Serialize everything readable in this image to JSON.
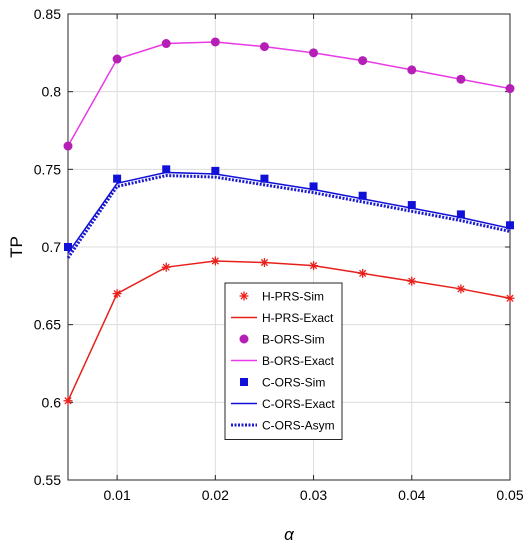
{
  "chart_data": {
    "type": "line",
    "xlabel": "α",
    "ylabel": "TP",
    "xlim": [
      0.005,
      0.05
    ],
    "ylim": [
      0.55,
      0.85
    ],
    "xticks": [
      0.01,
      0.02,
      0.03,
      0.04,
      0.05
    ],
    "xtick_labels": [
      "0.01",
      "0.02",
      "0.03",
      "0.04",
      "0.05"
    ],
    "yticks": [
      0.55,
      0.6,
      0.65,
      0.7,
      0.75,
      0.8,
      0.85
    ],
    "ytick_labels": [
      "0.55",
      "0.6",
      "0.65",
      "0.7",
      "0.75",
      "0.8",
      "0.85"
    ],
    "grid": true,
    "legend_position": "bottom-center",
    "x": [
      0.005,
      0.01,
      0.015,
      0.02,
      0.025,
      0.03,
      0.035,
      0.04,
      0.045,
      0.05
    ],
    "series": [
      {
        "name": "H-PRS-Sim",
        "style": "marker",
        "marker": "asterisk",
        "color": "#e8201c",
        "values": [
          0.601,
          0.67,
          0.687,
          0.691,
          0.69,
          0.688,
          0.683,
          0.678,
          0.673,
          0.667
        ]
      },
      {
        "name": "H-PRS-Exact",
        "style": "line",
        "dash": "solid",
        "color": "#e8201c",
        "values": [
          0.601,
          0.67,
          0.687,
          0.691,
          0.69,
          0.688,
          0.683,
          0.678,
          0.673,
          0.667
        ]
      },
      {
        "name": "B-ORS-Sim",
        "style": "marker",
        "marker": "circle",
        "color": "#b61fb5",
        "values": [
          0.765,
          0.821,
          0.831,
          0.832,
          0.829,
          0.825,
          0.82,
          0.814,
          0.808,
          0.802
        ]
      },
      {
        "name": "B-ORS-Exact",
        "style": "line",
        "dash": "solid",
        "color": "#e83ae6",
        "values": [
          0.765,
          0.821,
          0.831,
          0.832,
          0.829,
          0.825,
          0.82,
          0.814,
          0.808,
          0.802
        ]
      },
      {
        "name": "C-ORS-Sim",
        "style": "marker",
        "marker": "square",
        "color": "#1010d8",
        "values": [
          0.7,
          0.744,
          0.75,
          0.749,
          0.744,
          0.739,
          0.733,
          0.727,
          0.721,
          0.714
        ]
      },
      {
        "name": "C-ORS-Exact",
        "style": "line",
        "dash": "solid",
        "color": "#1010d8",
        "values": [
          0.696,
          0.741,
          0.748,
          0.747,
          0.742,
          0.737,
          0.731,
          0.725,
          0.719,
          0.712
        ]
      },
      {
        "name": "C-ORS-Asym",
        "style": "line",
        "dash": "dotted",
        "color": "#1a1acc",
        "values": [
          0.693,
          0.739,
          0.746,
          0.745,
          0.74,
          0.735,
          0.729,
          0.723,
          0.717,
          0.71
        ]
      }
    ]
  }
}
